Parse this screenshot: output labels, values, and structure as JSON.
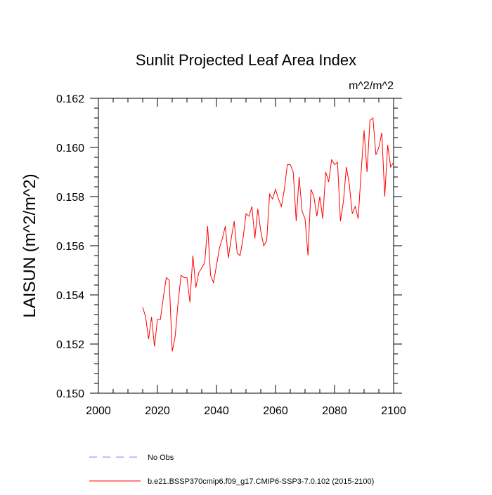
{
  "chart_data": {
    "type": "line",
    "title": "Sunlit Projected Leaf Area Index",
    "units_label": "m^2/m^2",
    "ylabel": "LAISUN  (m^2/m^2)",
    "xlabel": "",
    "xlim": [
      2000,
      2100
    ],
    "ylim": [
      0.15,
      0.162
    ],
    "xticks": [
      2000,
      2020,
      2040,
      2060,
      2080,
      2100
    ],
    "xtick_labels": [
      "2000",
      "2020",
      "2040",
      "2060",
      "2080",
      "2100"
    ],
    "yticks": [
      0.15,
      0.152,
      0.154,
      0.156,
      0.158,
      0.16,
      0.162
    ],
    "ytick_labels": [
      "0.150",
      "0.152",
      "0.154",
      "0.156",
      "0.158",
      "0.160",
      "0.162"
    ],
    "grid": false,
    "legend_placement": "bottom-left",
    "series": [
      {
        "name": "b.e21.BSSP370cmip6.f09_g17.CMIP6-SSP3-7.0.102 (2015-2100)",
        "color": "#ff0000",
        "style": "solid",
        "x": [
          2015,
          2016,
          2017,
          2018,
          2019,
          2020,
          2021,
          2022,
          2023,
          2024,
          2025,
          2026,
          2027,
          2028,
          2029,
          2030,
          2031,
          2032,
          2033,
          2034,
          2035,
          2036,
          2037,
          2038,
          2039,
          2040,
          2041,
          2042,
          2043,
          2044,
          2045,
          2046,
          2047,
          2048,
          2049,
          2050,
          2051,
          2052,
          2053,
          2054,
          2055,
          2056,
          2057,
          2058,
          2059,
          2060,
          2061,
          2062,
          2063,
          2064,
          2065,
          2066,
          2067,
          2068,
          2069,
          2070,
          2071,
          2072,
          2073,
          2074,
          2075,
          2076,
          2077,
          2078,
          2079,
          2080,
          2081,
          2082,
          2083,
          2084,
          2085,
          2086,
          2087,
          2088,
          2089,
          2090,
          2091,
          2092,
          2093,
          2094,
          2095,
          2096,
          2097,
          2098,
          2099,
          2100
        ],
        "values": [
          0.1535,
          0.1531,
          0.1522,
          0.1531,
          0.1519,
          0.153,
          0.153,
          0.1539,
          0.1547,
          0.1546,
          0.1517,
          0.1523,
          0.1537,
          0.1548,
          0.1547,
          0.1547,
          0.1537,
          0.1556,
          0.1543,
          0.1549,
          0.1551,
          0.1553,
          0.1568,
          0.1548,
          0.1545,
          0.1552,
          0.1559,
          0.1563,
          0.1568,
          0.1555,
          0.1563,
          0.157,
          0.1557,
          0.1556,
          0.1563,
          0.1573,
          0.1572,
          0.1576,
          0.1563,
          0.1575,
          0.1566,
          0.156,
          0.1562,
          0.1581,
          0.1579,
          0.1583,
          0.1579,
          0.1576,
          0.1583,
          0.1593,
          0.1593,
          0.159,
          0.157,
          0.1588,
          0.1574,
          0.1571,
          0.1556,
          0.1583,
          0.158,
          0.1572,
          0.158,
          0.1571,
          0.159,
          0.1586,
          0.1595,
          0.1593,
          0.1594,
          0.157,
          0.1578,
          0.1592,
          0.1585,
          0.1573,
          0.1576,
          0.1571,
          0.159,
          0.1607,
          0.159,
          0.1611,
          0.1612,
          0.1597,
          0.16,
          0.1606,
          0.158,
          0.1601,
          0.1592,
          0.1594
        ]
      }
    ],
    "legend": [
      {
        "label": "No Obs",
        "color": "#8080ff",
        "style": "dashed"
      },
      {
        "label": "b.e21.BSSP370cmip6.f09_g17.CMIP6-SSP3-7.0.102 (2015-2100)",
        "color": "#ff0000",
        "style": "solid"
      }
    ]
  }
}
